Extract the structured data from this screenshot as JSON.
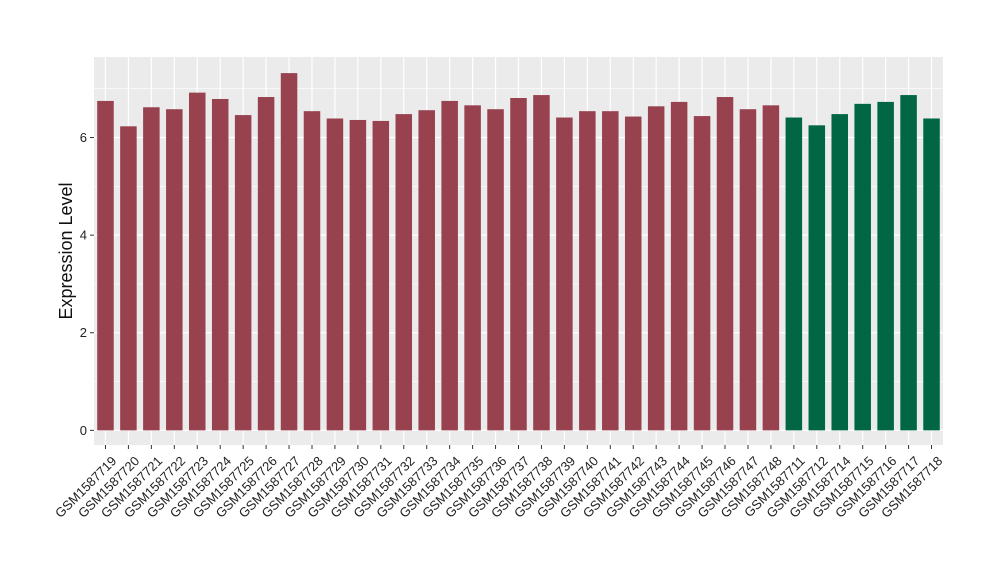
{
  "chart_data": {
    "type": "bar",
    "title": "",
    "xlabel": "",
    "ylabel": "Expression Level",
    "ylim": [
      -0.3,
      7.65
    ],
    "yticks": [
      0,
      2,
      4,
      6
    ],
    "grid": true,
    "legend": "none",
    "panel_background": "#EBEBEB",
    "grid_color": "#FFFFFF",
    "categories": [
      "GSM1587719",
      "GSM1587720",
      "GSM1587721",
      "GSM1587722",
      "GSM1587723",
      "GSM1587724",
      "GSM1587725",
      "GSM1587726",
      "GSM1587727",
      "GSM1587728",
      "GSM1587729",
      "GSM1587730",
      "GSM1587731",
      "GSM1587732",
      "GSM1587733",
      "GSM1587734",
      "GSM1587735",
      "GSM1587736",
      "GSM1587737",
      "GSM1587738",
      "GSM1587739",
      "GSM1587740",
      "GSM1587741",
      "GSM1587742",
      "GSM1587743",
      "GSM1587744",
      "GSM1587745",
      "GSM1587746",
      "GSM1587747",
      "GSM1587748",
      "GSM1587711",
      "GSM1587712",
      "GSM1587714",
      "GSM1587715",
      "GSM1587716",
      "GSM1587717",
      "GSM1587718"
    ],
    "values": [
      6.75,
      6.23,
      6.62,
      6.58,
      6.92,
      6.79,
      6.46,
      6.83,
      7.32,
      6.54,
      6.39,
      6.36,
      6.34,
      6.48,
      6.56,
      6.75,
      6.66,
      6.58,
      6.81,
      6.87,
      6.41,
      6.54,
      6.54,
      6.43,
      6.64,
      6.73,
      6.44,
      6.83,
      6.58,
      6.66,
      6.41,
      6.25,
      6.48,
      6.69,
      6.73,
      6.87,
      6.39
    ],
    "groups": [
      "a",
      "a",
      "a",
      "a",
      "a",
      "a",
      "a",
      "a",
      "a",
      "a",
      "a",
      "a",
      "a",
      "a",
      "a",
      "a",
      "a",
      "a",
      "a",
      "a",
      "a",
      "a",
      "a",
      "a",
      "a",
      "a",
      "a",
      "a",
      "a",
      "a",
      "b",
      "b",
      "b",
      "b",
      "b",
      "b",
      "b"
    ],
    "group_colors": {
      "a": "#984250",
      "b": "#006644"
    }
  }
}
